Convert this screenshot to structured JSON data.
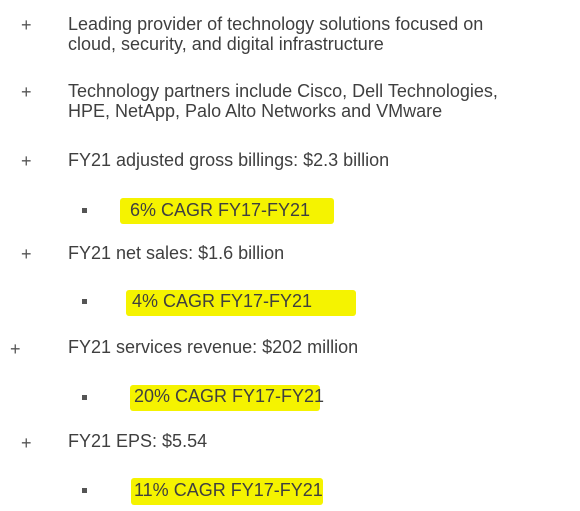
{
  "bullets": [
    {
      "marker": "+",
      "lines": [
        "Leading provider of technology solutions focused on",
        "cloud, security, and digital infrastructure"
      ]
    },
    {
      "marker": "+",
      "lines": [
        "Technology partners include Cisco, Dell Technologies,",
        "HPE, NetApp, Palo Alto Networks and VMware"
      ]
    },
    {
      "marker": "+",
      "text": "FY21 adjusted gross billings: $2.3 billion",
      "sub": "6% CAGR FY17-FY21"
    },
    {
      "marker": "+",
      "text": "FY21 net sales: $1.6 billion",
      "sub": "4% CAGR FY17-FY21"
    },
    {
      "marker": "+",
      "text": "FY21 services revenue: $202 million",
      "sub": "20% CAGR FY17-FY21"
    },
    {
      "marker": "+",
      "text": "FY21 EPS: $5.54",
      "sub": "11% CAGR FY17-FY21"
    }
  ],
  "colors": {
    "text": "#3f3f3f",
    "highlight": "#f5f300"
  }
}
